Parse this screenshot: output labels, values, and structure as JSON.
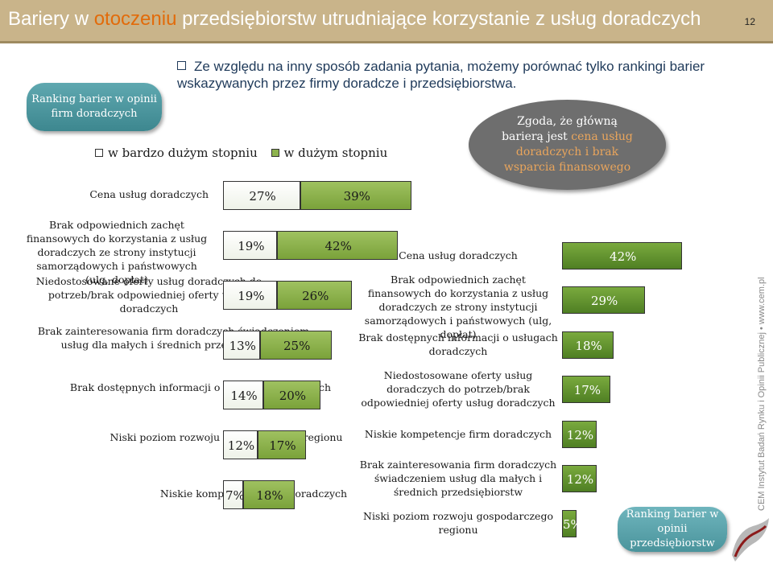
{
  "header": {
    "title_part1": "Bariery w ",
    "title_accent": "otoczeniu",
    "title_part2": " przedsiębiorstw utrudniające korzystanie z usług doradczych",
    "page_number": "12",
    "colors": {
      "background": "#c9b48a",
      "accent": "#e26b0a"
    }
  },
  "intro": {
    "text": "Ze względu na inny sposób zadania pytania, możemy porównać tylko rankingi barier wskazywanych przez firmy doradcze i przedsiębiorstwa."
  },
  "left_panel_label": "Ranking barier w opinii firm doradczych",
  "right_panel_label": "Ranking barier w opinii przedsiębiorstw",
  "callout": {
    "text_part1": "Zgoda, że główną barierą jest ",
    "text_highlight": "cena usług doradczych i brak wsparcia finansowego"
  },
  "legend": {
    "items": [
      {
        "label": "w bardzo dużym stopniu",
        "color": "#ffffff"
      },
      {
        "label": "w dużym stopniu",
        "color": "#8db34d"
      }
    ]
  },
  "watermark": "CEM Instytut Badań Rynku i Opinii Publicznej • www.cem.pl",
  "chart_data": [
    {
      "type": "bar",
      "orientation": "horizontal",
      "stacked": true,
      "categories": [
        "Cena usług doradczych",
        "Brak odpowiednich zachęt finansowych do korzystania z usług doradczych ze strony instytucji samorządowych i państwowych (ulg, dopłat)",
        "Niedostosowane oferty usług doradczych do potrzeb/brak odpowiedniej oferty usług doradczych",
        "Brak zainteresowania firm doradczych świadczeniem usług dla małych i średnich przedsiębiorstw",
        "Brak dostępnych informacji o usługach doradczych",
        "Niski poziom rozwoju gospodarczego regionu",
        "Niskie kompetencje firm doradczych"
      ],
      "series": [
        {
          "name": "w bardzo dużym stopniu",
          "values": [
            27,
            19,
            19,
            13,
            14,
            12,
            7
          ]
        },
        {
          "name": "w dużym stopniu",
          "values": [
            39,
            42,
            26,
            25,
            20,
            17,
            18
          ]
        }
      ],
      "value_labels": [
        [
          "27%",
          "39%"
        ],
        [
          "19%",
          "42%"
        ],
        [
          "19%",
          "26%"
        ],
        [
          "13%",
          "25%"
        ],
        [
          "14%",
          "20%"
        ],
        [
          "12%",
          "17%"
        ],
        [
          "7%",
          "18%"
        ]
      ],
      "unit": "%"
    },
    {
      "type": "bar",
      "orientation": "horizontal",
      "stacked": false,
      "categories": [
        "Cena usług doradczych",
        "Brak odpowiednich zachęt finansowych do korzystania z usług doradczych ze strony instytucji samorządowych i państwowych (ulg, dopłat)",
        "Brak dostępnych informacji o usługach doradczych",
        "Niedostosowane oferty usług doradczych do potrzeb/brak odpowiedniej oferty usług doradczych",
        "Niskie kompetencje firm doradczych",
        "Brak zainteresowania firm doradczych świadczeniem usług dla małych i średnich przedsiębiorstw",
        "Niski poziom rozwoju gospodarczego regionu"
      ],
      "values": [
        42,
        29,
        18,
        17,
        12,
        12,
        5
      ],
      "value_labels": [
        "42%",
        "29%",
        "18%",
        "17%",
        "12%",
        "12%",
        "5%"
      ],
      "color": "#5f8f2e",
      "unit": "%"
    }
  ]
}
